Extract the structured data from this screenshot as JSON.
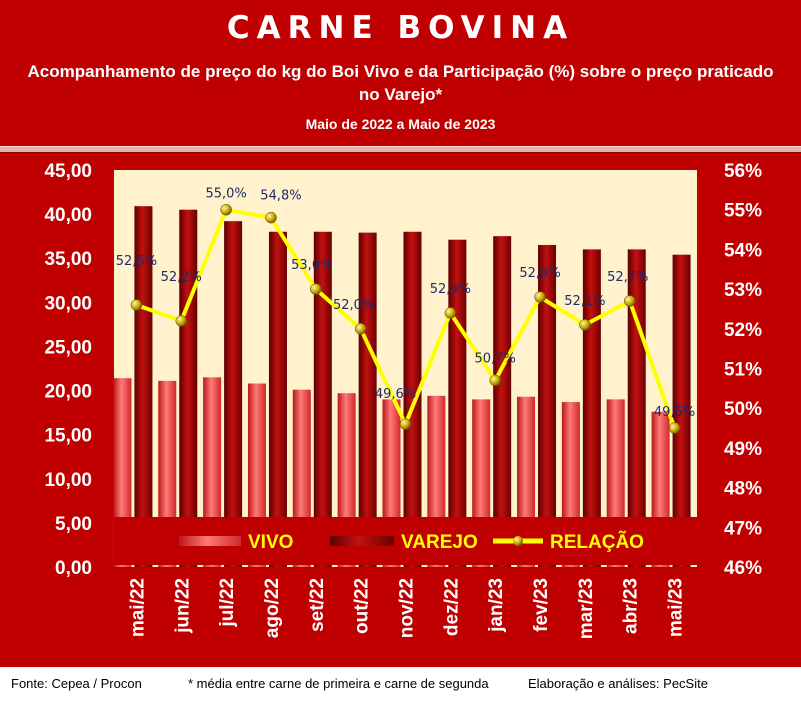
{
  "header": {
    "title": "CARNE BOVINA",
    "subtitle": "Acompanhamento de preço do kg do Boi Vivo e da Participação (%) sobre o preço praticado no Varejo*",
    "period": "Maio de 2022 a Maio de 2023"
  },
  "footer": {
    "source": "Fonte: Cepea / Procon",
    "note": "* média entre carne de primeira e carne de segunda",
    "credits": "Elaboração e análises: PecSite"
  },
  "colors": {
    "background": "#c00000",
    "plot_area": "#fff2cc",
    "vivo": "#f04848",
    "varejo": "#a80000",
    "relacao": "#ffff00",
    "marker": "#c8a400",
    "data_label": "#1f2a6b"
  },
  "chart_data": {
    "type": "bar",
    "categories": [
      "mai/22",
      "jun/22",
      "jul/22",
      "ago/22",
      "set/22",
      "out/22",
      "nov/22",
      "dez/22",
      "jan/23",
      "fev/23",
      "mar/23",
      "abr/23",
      "mai/23"
    ],
    "series": [
      {
        "name": "VIVO",
        "type": "bar",
        "axis": "left",
        "values": [
          21.4,
          21.1,
          21.5,
          20.8,
          20.1,
          19.7,
          19.0,
          19.4,
          19.0,
          19.3,
          18.7,
          19.0,
          17.6
        ]
      },
      {
        "name": "VAREJO",
        "type": "bar",
        "axis": "left",
        "values": [
          40.9,
          40.5,
          39.2,
          38.0,
          38.0,
          37.9,
          38.0,
          37.1,
          37.5,
          36.5,
          36.0,
          36.0,
          35.4
        ]
      },
      {
        "name": "RELAÇÃO",
        "type": "line",
        "axis": "right",
        "values": [
          52.6,
          52.2,
          55.0,
          54.8,
          53.0,
          52.0,
          49.6,
          52.4,
          50.7,
          52.8,
          52.1,
          52.7,
          49.5
        ],
        "labels": [
          "52,6%",
          "52,2%",
          "55,0%",
          "54,8%",
          "53,0%",
          "52,0%",
          "49,6%",
          "52,4%",
          "50,7%",
          "52,8%",
          "52,1%",
          "52,7%",
          "49,5%"
        ]
      }
    ],
    "y_left": {
      "min": 0,
      "max": 45,
      "step": 5,
      "tick_labels": [
        "0,00",
        "5,00",
        "10,00",
        "15,00",
        "20,00",
        "25,00",
        "30,00",
        "35,00",
        "40,00",
        "45,00"
      ]
    },
    "y_right": {
      "min": 46,
      "max": 56,
      "step": 1,
      "tick_labels": [
        "46%",
        "47%",
        "48%",
        "49%",
        "50%",
        "51%",
        "52%",
        "53%",
        "54%",
        "55%",
        "56%"
      ]
    },
    "legend": {
      "position": "bottom-inside",
      "items": [
        "VIVO",
        "VAREJO",
        "RELAÇÃO"
      ]
    },
    "grid": false
  }
}
